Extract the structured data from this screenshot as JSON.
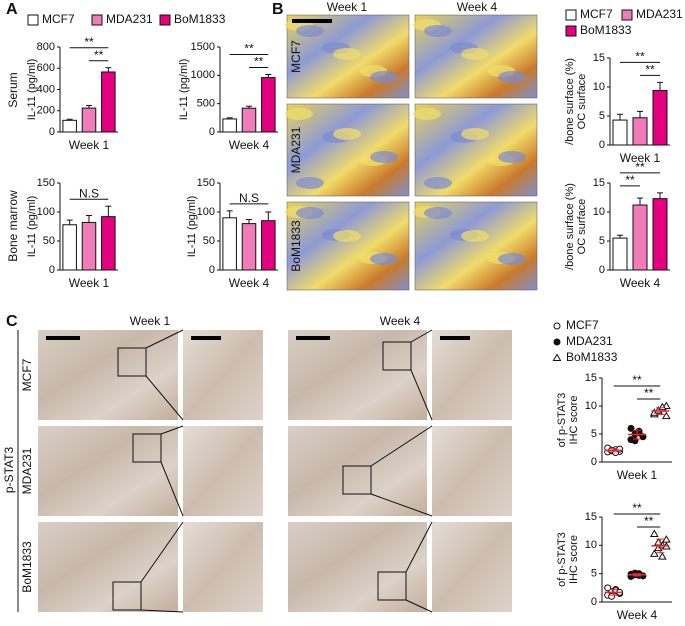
{
  "figure": {
    "panels": [
      "A",
      "B",
      "C"
    ],
    "a_rows": [
      "Serum",
      "Bone marrow"
    ],
    "b_columns": [
      "Week 1",
      "Week 4"
    ],
    "b_rows": [
      "MCF7",
      "MDA231",
      "BoM1833"
    ],
    "c_columns": [
      "Week 1",
      "Week 4"
    ],
    "c_rows": [
      "MCF7",
      "MDA231",
      "BoM1833"
    ],
    "c_stain": "p-STAT3"
  },
  "chart_data": [
    {
      "type": "bar",
      "ylabel": "IL-11 (pg/ml)",
      "categories": [
        "Week 1"
      ],
      "ylim": [
        0,
        800
      ],
      "yticks": [
        0,
        200,
        400,
        600,
        800
      ],
      "series": [
        {
          "name": "MCF7",
          "color": "#ffffff",
          "values": [
            110
          ],
          "errors": [
            10
          ]
        },
        {
          "name": "MDA231",
          "color": "#f17cb9",
          "values": [
            225
          ],
          "errors": [
            25
          ]
        },
        {
          "name": "BoM1833",
          "color": "#e4007f",
          "values": [
            565
          ],
          "errors": [
            40
          ]
        }
      ],
      "annotations": [
        {
          "text": "**",
          "between": [
            "MDA231",
            "BoM1833"
          ]
        },
        {
          "text": "**",
          "between": [
            "MCF7",
            "BoM1833"
          ]
        }
      ]
    },
    {
      "type": "bar",
      "ylabel": "IL-11 (pg/ml)",
      "categories": [
        "Week 4"
      ],
      "ylim": [
        0,
        1500
      ],
      "yticks": [
        0,
        500,
        1000,
        1500
      ],
      "series": [
        {
          "name": "MCF7",
          "color": "#ffffff",
          "values": [
            230
          ],
          "errors": [
            20
          ]
        },
        {
          "name": "MDA231",
          "color": "#f17cb9",
          "values": [
            420
          ],
          "errors": [
            35
          ]
        },
        {
          "name": "BoM1833",
          "color": "#e4007f",
          "values": [
            960
          ],
          "errors": [
            55
          ]
        }
      ],
      "annotations": [
        {
          "text": "**",
          "between": [
            "MDA231",
            "BoM1833"
          ]
        },
        {
          "text": "**",
          "between": [
            "MCF7",
            "BoM1833"
          ]
        }
      ]
    },
    {
      "type": "bar",
      "ylabel": "IL-11 (pg/ml)",
      "categories": [
        "Week 1"
      ],
      "ylim": [
        0,
        150
      ],
      "yticks": [
        0,
        50,
        100,
        150
      ],
      "series": [
        {
          "name": "MCF7",
          "color": "#ffffff",
          "values": [
            78
          ],
          "errors": [
            8
          ]
        },
        {
          "name": "MDA231",
          "color": "#f17cb9",
          "values": [
            82
          ],
          "errors": [
            12
          ]
        },
        {
          "name": "BoM1833",
          "color": "#e4007f",
          "values": [
            92
          ],
          "errors": [
            18
          ]
        }
      ],
      "annotations": [
        {
          "text": "N.S",
          "between": [
            "MCF7",
            "BoM1833"
          ]
        }
      ]
    },
    {
      "type": "bar",
      "ylabel": "IL-11 (pg/ml)",
      "categories": [
        "Week 4"
      ],
      "ylim": [
        0,
        150
      ],
      "yticks": [
        0,
        50,
        100,
        150
      ],
      "series": [
        {
          "name": "MCF7",
          "color": "#ffffff",
          "values": [
            90
          ],
          "errors": [
            12
          ]
        },
        {
          "name": "MDA231",
          "color": "#f17cb9",
          "values": [
            80
          ],
          "errors": [
            7
          ]
        },
        {
          "name": "BoM1833",
          "color": "#e4007f",
          "values": [
            85
          ],
          "errors": [
            15
          ]
        }
      ],
      "annotations": [
        {
          "text": "N.S",
          "between": [
            "MCF7",
            "BoM1833"
          ]
        }
      ]
    },
    {
      "type": "bar",
      "ylabel": [
        "OC surface",
        "/bone surface (%)"
      ],
      "categories": [
        "Week 1"
      ],
      "ylim": [
        0,
        15
      ],
      "yticks": [
        0,
        5,
        10,
        15
      ],
      "series": [
        {
          "name": "MCF7",
          "color": "#ffffff",
          "values": [
            4.3
          ],
          "errors": [
            1.0
          ]
        },
        {
          "name": "MDA231",
          "color": "#f17cb9",
          "values": [
            4.7
          ],
          "errors": [
            1.1
          ]
        },
        {
          "name": "BoM1833",
          "color": "#e4007f",
          "values": [
            9.4
          ],
          "errors": [
            1.4
          ]
        }
      ],
      "annotations": [
        {
          "text": "**",
          "between": [
            "MDA231",
            "BoM1833"
          ]
        },
        {
          "text": "**",
          "between": [
            "MCF7",
            "BoM1833"
          ]
        }
      ]
    },
    {
      "type": "bar",
      "ylabel": [
        "OC surface",
        "/bone surface (%)"
      ],
      "categories": [
        "Week 4"
      ],
      "ylim": [
        0,
        15
      ],
      "yticks": [
        0,
        5,
        10,
        15
      ],
      "series": [
        {
          "name": "MCF7",
          "color": "#ffffff",
          "values": [
            5.5
          ],
          "errors": [
            0.5
          ]
        },
        {
          "name": "MDA231",
          "color": "#f17cb9",
          "values": [
            11.2
          ],
          "errors": [
            1.2
          ]
        },
        {
          "name": "BoM1833",
          "color": "#e4007f",
          "values": [
            12.3
          ],
          "errors": [
            1.0
          ]
        }
      ],
      "annotations": [
        {
          "text": "**",
          "between": [
            "MCF7",
            "MDA231"
          ]
        },
        {
          "text": "**",
          "between": [
            "MCF7",
            "BoM1833"
          ]
        }
      ]
    },
    {
      "type": "scatter",
      "ylabel": [
        "IHC score",
        "of p-STAT3"
      ],
      "categories": [
        "Week 1"
      ],
      "ylim": [
        0,
        15
      ],
      "yticks": [
        0,
        5,
        10,
        15
      ],
      "mean_color": "#e8262c",
      "series": [
        {
          "name": "MCF7",
          "marker": "open-circle",
          "color": "#111111",
          "values": [
            1.8,
            2.0,
            2.2,
            1.9,
            2.5,
            2.1,
            1.7,
            2.3
          ],
          "mean": 2.1,
          "sd": 0.3
        },
        {
          "name": "MDA231",
          "marker": "filled-circle",
          "color": "#111111",
          "values": [
            4.0,
            5.0,
            5.5,
            4.5,
            6.0,
            3.8,
            5.2
          ],
          "mean": 4.9,
          "sd": 0.8
        },
        {
          "name": "BoM1833",
          "marker": "triangle",
          "color": "#111111",
          "values": [
            8.5,
            9.0,
            9.5,
            10.0,
            8.8,
            9.2,
            9.8,
            8.2
          ],
          "mean": 9.1,
          "sd": 0.6
        }
      ],
      "annotations": [
        {
          "text": "**",
          "between": [
            "MDA231",
            "BoM1833"
          ]
        },
        {
          "text": "**",
          "between": [
            "MCF7",
            "BoM1833"
          ]
        }
      ]
    },
    {
      "type": "scatter",
      "ylabel": [
        "IHC score",
        "of p-STAT3"
      ],
      "categories": [
        "Week 4"
      ],
      "ylim": [
        0,
        15
      ],
      "yticks": [
        0,
        5,
        10,
        15
      ],
      "mean_color": "#e8262c",
      "series": [
        {
          "name": "MCF7",
          "marker": "open-circle",
          "color": "#111111",
          "values": [
            1.2,
            1.8,
            2.2,
            1.5,
            2.5,
            1.0,
            2.0,
            1.7
          ],
          "mean": 1.7,
          "sd": 0.5
        },
        {
          "name": "MDA231",
          "marker": "filled-circle",
          "color": "#111111",
          "values": [
            4.5,
            4.8,
            5.0,
            4.6,
            4.9,
            5.1,
            4.7
          ],
          "mean": 4.8,
          "sd": 0.2
        },
        {
          "name": "BoM1833",
          "marker": "triangle",
          "color": "#111111",
          "values": [
            8.5,
            9.5,
            10.0,
            11.0,
            12.0,
            10.5,
            8.0,
            9.8
          ],
          "mean": 9.9,
          "sd": 1.2
        }
      ],
      "annotations": [
        {
          "text": "**",
          "between": [
            "MDA231",
            "BoM1833"
          ]
        },
        {
          "text": "**",
          "between": [
            "MCF7",
            "BoM1833"
          ]
        }
      ]
    }
  ]
}
